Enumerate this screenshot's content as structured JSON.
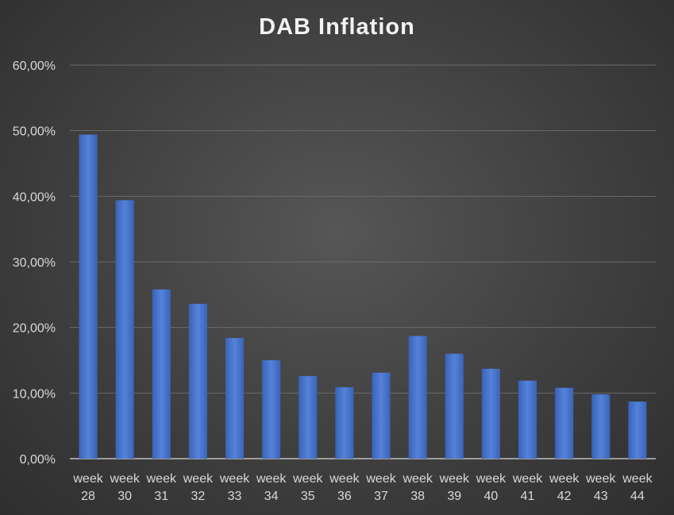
{
  "chart_data": {
    "type": "bar",
    "title": "DAB Inflation",
    "xlabel": "",
    "ylabel": "",
    "ylim": [
      0,
      60
    ],
    "yticks": [
      "0,00%",
      "10,00%",
      "20,00%",
      "30,00%",
      "40,00%",
      "50,00%",
      "60,00%"
    ],
    "grid": true,
    "legend": "none",
    "categories": [
      "week 28",
      "week 30",
      "week 31",
      "week 32",
      "week 33",
      "week 34",
      "week 35",
      "week 36",
      "week 37",
      "week 38",
      "week 39",
      "week 40",
      "week 41",
      "week 42",
      "week 43",
      "week 44"
    ],
    "values": [
      49.4,
      39.4,
      25.8,
      23.6,
      18.4,
      15.0,
      12.6,
      10.9,
      13.1,
      18.7,
      16.0,
      13.7,
      11.9,
      10.8,
      9.8,
      8.7
    ],
    "colors": {
      "bar": "#4472c4",
      "bar_light": "#5b8be0",
      "grid": "#6a6a6a",
      "text": "#d9d9d9",
      "title": "#f2f2f2"
    }
  }
}
